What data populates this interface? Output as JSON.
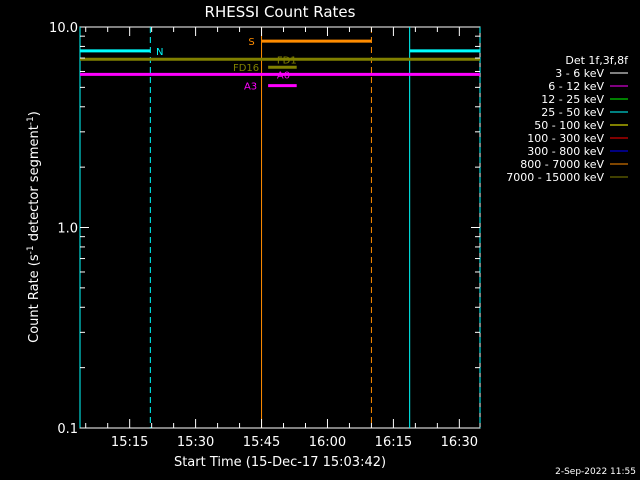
{
  "chart_data": {
    "type": "line",
    "title": "RHESSI Count Rates",
    "xlabel": "Start Time (15-Dec-17 15:03:42)",
    "ylabel_main": "Count Rate (s",
    "ylabel_sup1": "-1",
    "ylabel_mid": " detector segment",
    "ylabel_sup2": "-1",
    "ylabel_end": ")",
    "y_scale": "log",
    "ylim": [
      0.1,
      10.0
    ],
    "xlim_minutes": [
      3.7,
      94.7
    ],
    "x_ticks": [
      {
        "label": "15:15",
        "minute": 15
      },
      {
        "label": "15:30",
        "minute": 30
      },
      {
        "label": "15:45",
        "minute": 45
      },
      {
        "label": "16:00",
        "minute": 60
      },
      {
        "label": "16:15",
        "minute": 75
      },
      {
        "label": "16:30",
        "minute": 90
      }
    ],
    "y_ticks": [
      {
        "label": "10.0",
        "value": 10.0
      },
      {
        "label": "1.0",
        "value": 1.0
      },
      {
        "label": "0.1",
        "value": 0.1
      }
    ],
    "legend": {
      "placement": "top-right",
      "title": "Det 1f,3f,8f",
      "entries": [
        {
          "label": "3 - 6 keV",
          "color": "#ffffff"
        },
        {
          "label": "6 - 12 keV",
          "color": "#ff00ff"
        },
        {
          "label": "12 - 25 keV",
          "color": "#00ff00"
        },
        {
          "label": "25 - 50 keV",
          "color": "#00ffff"
        },
        {
          "label": "50 - 100 keV",
          "color": "#ffff00"
        },
        {
          "label": "100 - 300 keV",
          "color": "#ff0000"
        },
        {
          "label": "300 - 800 keV",
          "color": "#0000ff"
        },
        {
          "label": "800 - 7000 keV",
          "color": "#ff8c00"
        },
        {
          "label": "7000 - 15000 keV",
          "color": "#808000"
        }
      ]
    },
    "segments": [
      {
        "name": "cyan-left",
        "x": [
          3.7,
          19.7
        ],
        "y": 7.6,
        "color": "#00ffff"
      },
      {
        "name": "cyan-right",
        "x": [
          78.7,
          94.7
        ],
        "y": 7.6,
        "color": "#00ffff"
      },
      {
        "name": "orange-s",
        "x": [
          45.0,
          70.0
        ],
        "y": 8.5,
        "color": "#ff8c00"
      },
      {
        "name": "olive-main",
        "x": [
          3.7,
          94.7
        ],
        "y": 6.9,
        "color": "#808000"
      },
      {
        "name": "magenta-main",
        "x": [
          3.7,
          94.7
        ],
        "y": 5.8,
        "color": "#ff00ff"
      },
      {
        "name": "olive-fd1",
        "x": [
          46.5,
          53.0
        ],
        "y": 6.3,
        "color": "#808000"
      },
      {
        "name": "magenta-a0",
        "x": [
          46.5,
          53.0
        ],
        "y": 5.1,
        "color": "#ff00ff"
      }
    ],
    "vlines": [
      {
        "name": "cyan-solid-1",
        "x": 3.7,
        "color": "#00ffff",
        "dashed": false
      },
      {
        "name": "cyan-dashed-1",
        "x": 19.7,
        "color": "#00ffff",
        "dashed": true
      },
      {
        "name": "orange-solid",
        "x": 45.0,
        "color": "#ff8c00",
        "dashed": false
      },
      {
        "name": "orange-dashed",
        "x": 70.0,
        "color": "#ff8c00",
        "dashed": true
      },
      {
        "name": "cyan-solid-2",
        "x": 78.7,
        "color": "#00ffff",
        "dashed": false
      },
      {
        "name": "cyan-dashed-2",
        "x": 94.7,
        "color": "#00ffff",
        "dashed": true
      }
    ],
    "annotations": [
      {
        "text": "N",
        "x": 21.0,
        "y": 7.6,
        "color": "#00ffff"
      },
      {
        "text": "S",
        "x": 42.0,
        "y": 8.5,
        "color": "#ff8c00"
      },
      {
        "text": "FD1",
        "x": 48.5,
        "y": 6.9,
        "color": "#808000"
      },
      {
        "text": "FD16",
        "x": 38.5,
        "y": 6.3,
        "color": "#808000"
      },
      {
        "text": "A0",
        "x": 48.5,
        "y": 5.8,
        "color": "#ff00ff"
      },
      {
        "text": "A3",
        "x": 41.0,
        "y": 5.1,
        "color": "#ff00ff"
      }
    ]
  },
  "footer": {
    "date": "2-Sep-2022 11:55"
  }
}
